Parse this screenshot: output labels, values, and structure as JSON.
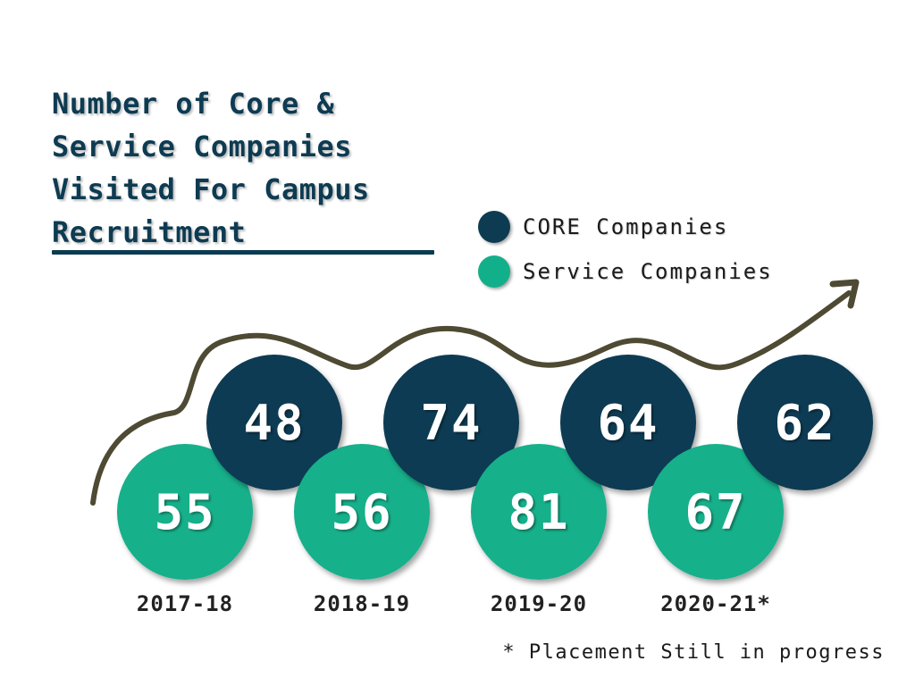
{
  "title": "Number of Core &\nService Companies\nVisited For Campus\nRecruitment",
  "footnote": "* Placement Still in progress",
  "colors": {
    "core": "#0d3b52",
    "service": "#12b08a",
    "trend": "#4e4a33"
  },
  "chart_data": {
    "type": "bubble-timeline",
    "title": "Number of Core & Service Companies Visited For Campus Recruitment",
    "categories": [
      "2017-18",
      "2018-19",
      "2019-20",
      "2020-21*"
    ],
    "series": [
      {
        "name": "CORE Companies",
        "values": [
          48,
          74,
          64,
          62
        ]
      },
      {
        "name": "Service Companies",
        "values": [
          55,
          56,
          81,
          67
        ]
      }
    ],
    "legend": "top-right",
    "footnote": "* Placement Still in progress"
  }
}
